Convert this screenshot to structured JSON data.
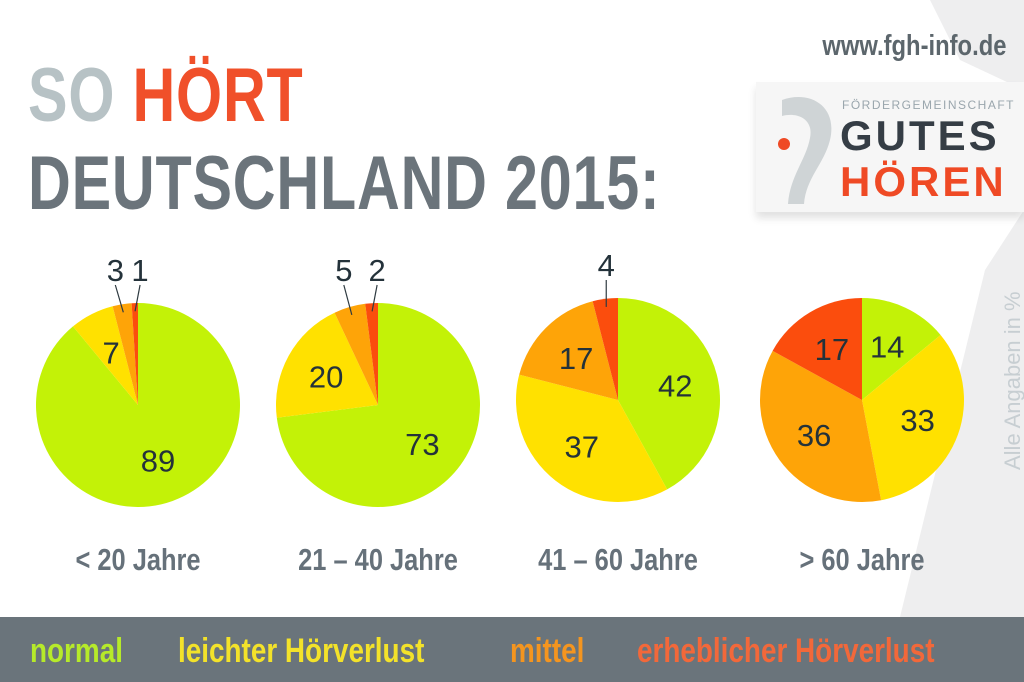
{
  "header": {
    "title_word1": "SO",
    "title_word2": "HÖRT",
    "title_line2": "DEUTSCHLAND 2015:",
    "url": "www.fgh-info.de"
  },
  "logo": {
    "subtitle": "FÖRDERGEMEINSCHAFT",
    "line1": "GUTES",
    "line2": "HÖREN"
  },
  "side_note": "Alle Angaben in %",
  "colors": {
    "normal": "#c3f207",
    "leicht": "#ffe100",
    "mittel": "#fea408",
    "erheblich": "#fb4d0d",
    "legend_normal": "#b6ea2a",
    "legend_leicht": "#f3e22a",
    "legend_mittel": "#f4951f",
    "legend_erheblich": "#f2683a"
  },
  "chart_data": {
    "type": "pie",
    "title": "SO HÖRT DEUTSCHLAND 2015:",
    "unit": "%",
    "legend": [
      "normal",
      "leichter Hörverlust",
      "mittel",
      "erheblicher Hörverlust"
    ],
    "legend_position": "bottom",
    "pies": [
      {
        "label": "< 20 Jahre",
        "values": [
          89,
          7,
          3,
          1
        ]
      },
      {
        "label": "21 – 40 Jahre",
        "values": [
          73,
          20,
          5,
          2
        ]
      },
      {
        "label": "41 – 60 Jahre",
        "values": [
          42,
          37,
          17,
          4
        ]
      },
      {
        "label": "> 60 Jahre",
        "values": [
          14,
          33,
          36,
          17
        ]
      }
    ]
  }
}
